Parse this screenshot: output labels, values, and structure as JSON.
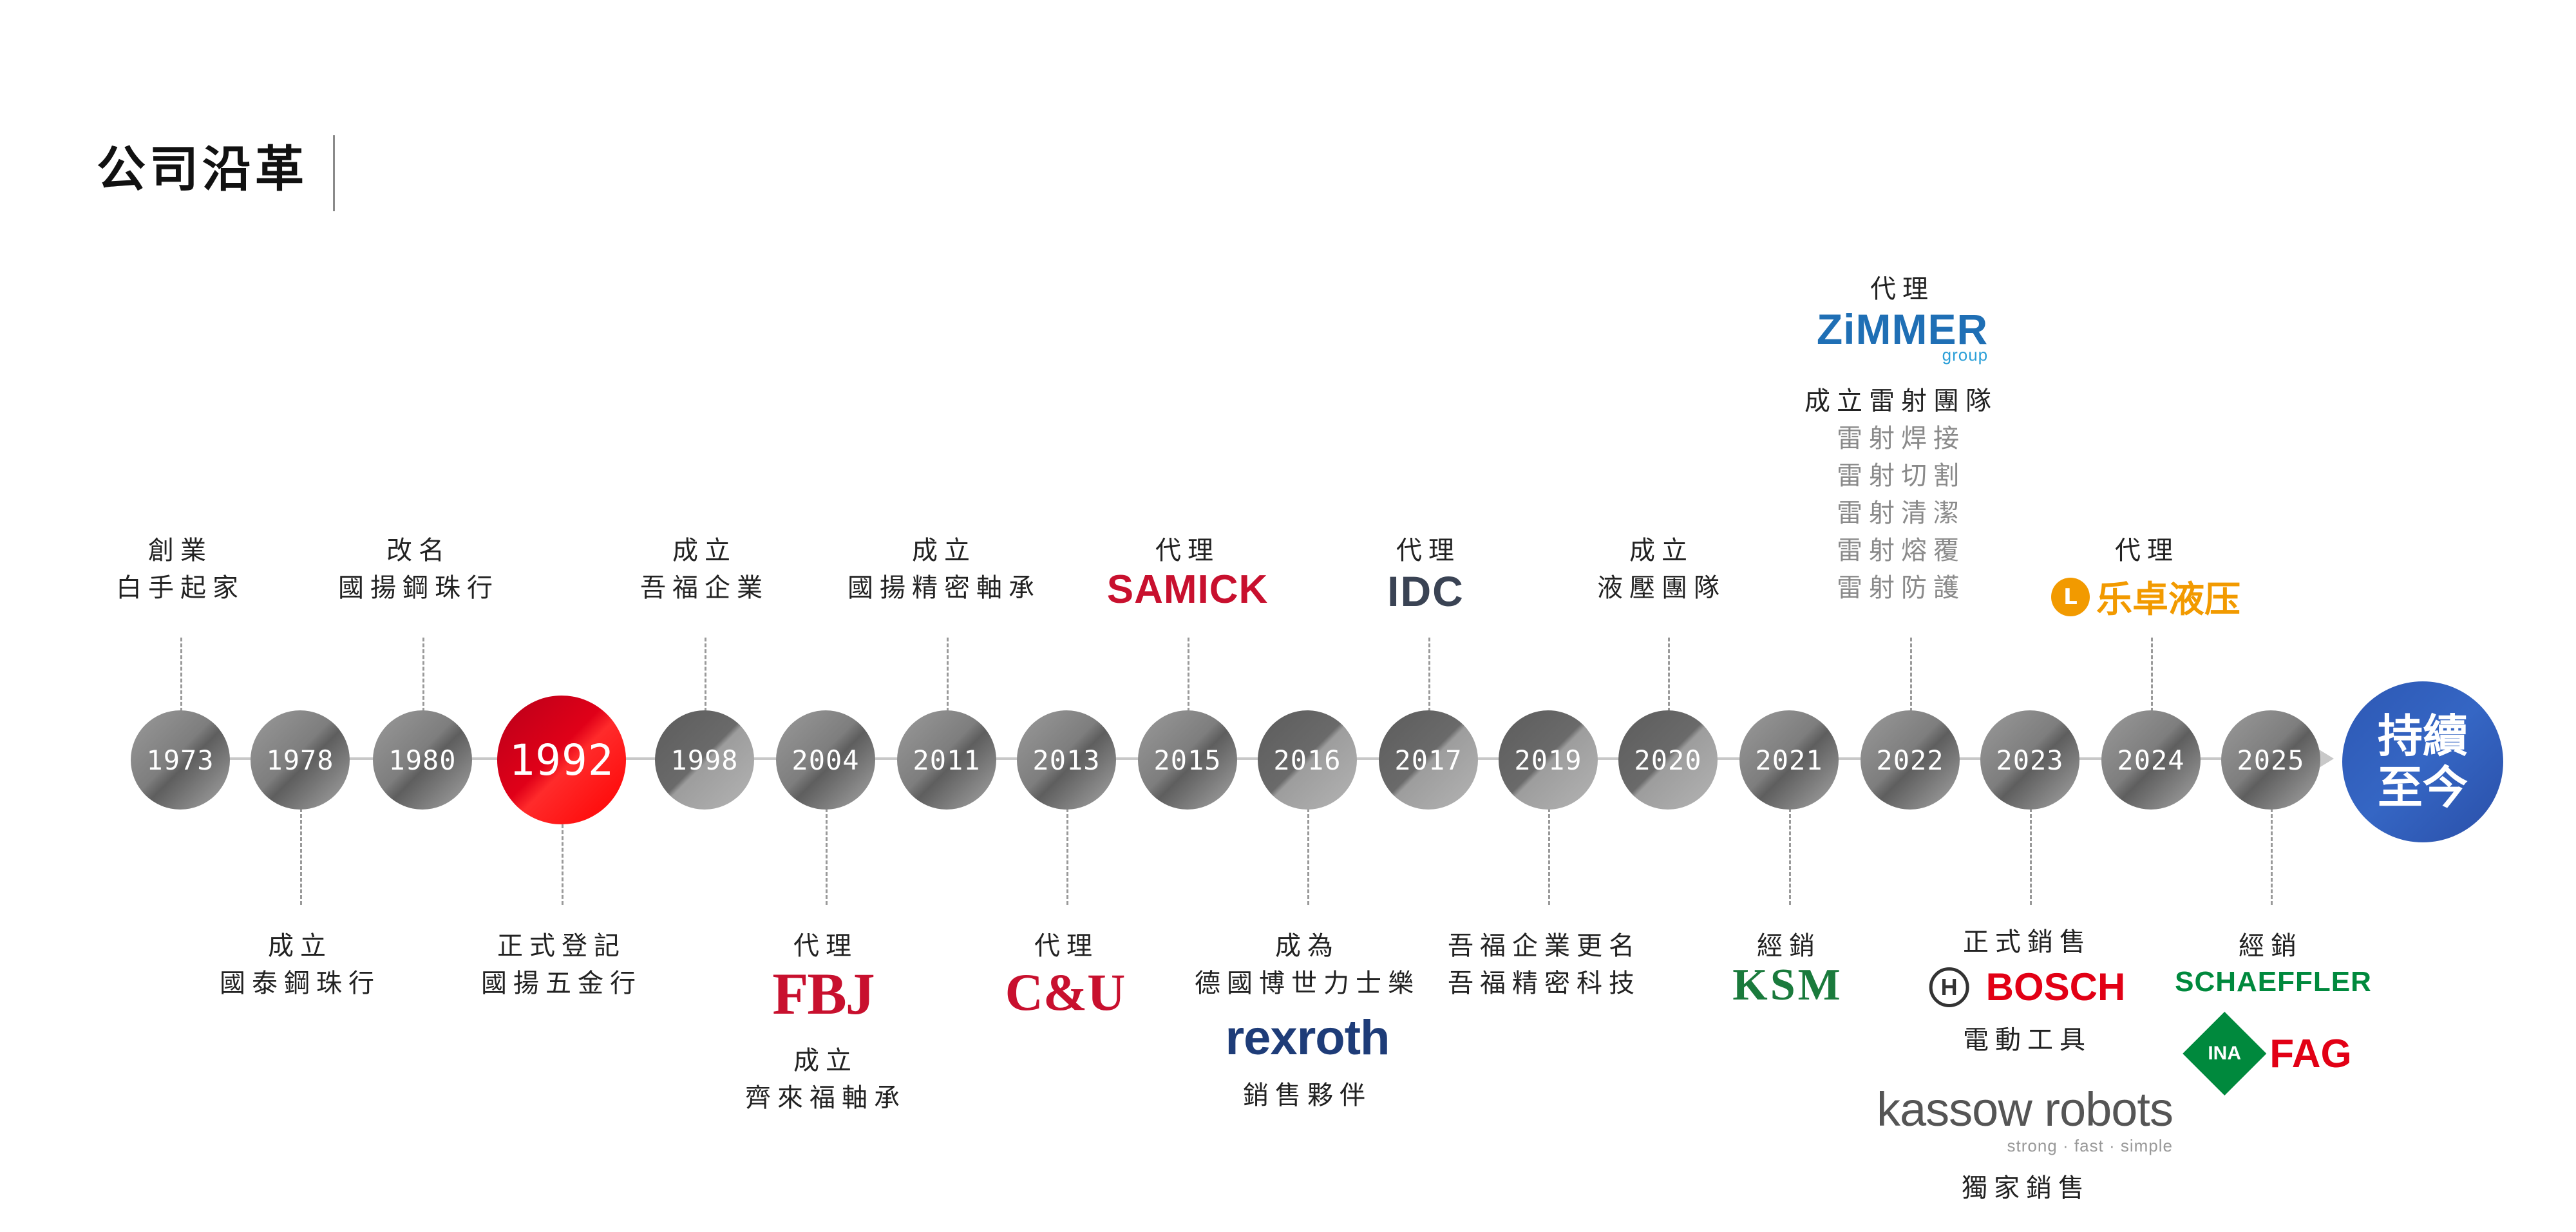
{
  "header": {
    "title": "公司沿革"
  },
  "timeline": {
    "nodes": [
      {
        "year": "1973"
      },
      {
        "year": "1978"
      },
      {
        "year": "1980"
      },
      {
        "year": "1992"
      },
      {
        "year": "1998"
      },
      {
        "year": "2004"
      },
      {
        "year": "2011"
      },
      {
        "year": "2013"
      },
      {
        "year": "2015"
      },
      {
        "year": "2016"
      },
      {
        "year": "2017"
      },
      {
        "year": "2019"
      },
      {
        "year": "2020"
      },
      {
        "year": "2021"
      },
      {
        "year": "2022"
      },
      {
        "year": "2023"
      },
      {
        "year": "2024"
      },
      {
        "year": "2025"
      }
    ],
    "end": {
      "line1": "持續",
      "line2": "至今",
      "color": "#2d58b4"
    },
    "highlight_color": "#e00018"
  },
  "events": {
    "y1973": {
      "line1": "創業",
      "line2": "白手起家"
    },
    "y1978": {
      "line1": "成立",
      "line2": "國泰鋼珠行"
    },
    "y1980": {
      "line1": "改名",
      "line2": "國揚鋼珠行"
    },
    "y1992": {
      "line1": "正式登記",
      "line2": "國揚五金行"
    },
    "y1998": {
      "line1": "成立",
      "line2": "吾福企業"
    },
    "y2004": {
      "line1": "代理",
      "logo": "FBJ",
      "line2": "成立",
      "line3": "齊來福軸承"
    },
    "y2011": {
      "line1": "成立",
      "line2": "國揚精密軸承"
    },
    "y2013": {
      "line1": "代理",
      "logo": "C&U"
    },
    "y2015": {
      "line1": "代理",
      "logo": "SAMICK"
    },
    "y2016": {
      "line1": "成為",
      "line2": "德國博世力士樂",
      "logo": "rexroth",
      "line3": "銷售夥伴"
    },
    "y2017": {
      "line1": "代理",
      "logo": "IDC"
    },
    "y2019": {
      "line1": "吾福企業更名",
      "line2": "吾福精密科技"
    },
    "y2020": {
      "line1": "成立",
      "line2": "液壓團隊"
    },
    "y2021": {
      "line1": "經銷",
      "logo": "KSM"
    },
    "y2022": {
      "line1": "代理",
      "logo": "ZiMMER",
      "logo_sub": "group",
      "line2": "成立雷射團隊",
      "sub_items": [
        "雷射焊接",
        "雷射切割",
        "雷射清潔",
        "雷射熔覆",
        "雷射防護"
      ]
    },
    "y2023": {
      "line1": "正式銷售",
      "logo": "BOSCH",
      "line2": "電動工具",
      "logo2": "kassow robots",
      "logo2_sub": "strong · fast · simple",
      "line3": "獨家銷售"
    },
    "y2024": {
      "line1": "代理",
      "logo_badge": "L",
      "logo": "乐卓液压"
    },
    "y2025": {
      "line1": "經銷",
      "logo": "SCHAEFFLER",
      "logo2a": "INA",
      "logo2b": "FAG"
    }
  }
}
